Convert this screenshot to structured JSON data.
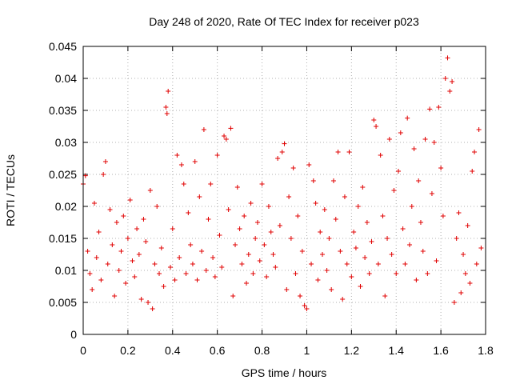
{
  "chart_data": {
    "type": "scatter",
    "title": "Day 248 of 2020, Rate Of TEC Index for receiver p023",
    "xlabel": "GPS time / hours",
    "ylabel": "ROTI / TECUs",
    "xlim": [
      0,
      1.8
    ],
    "ylim": [
      0,
      0.045
    ],
    "x_ticks": [
      0,
      0.2,
      0.4,
      0.6,
      0.8,
      1,
      1.2,
      1.4,
      1.6,
      1.8
    ],
    "x_tick_labels": [
      "0",
      "0.2",
      "0.4",
      "0.6",
      "0.8",
      "1",
      "1.2",
      "1.4",
      "1.6",
      "1.8"
    ],
    "y_ticks": [
      0,
      0.005,
      0.01,
      0.015,
      0.02,
      0.025,
      0.03,
      0.035,
      0.04,
      0.045
    ],
    "y_tick_labels": [
      "0",
      "0.005",
      "0.01",
      "0.015",
      "0.02",
      "0.025",
      "0.03",
      "0.035",
      "0.04",
      "0.045"
    ],
    "grid": true,
    "marker": "+",
    "color": "#e00000",
    "series": [
      {
        "name": "ROTI",
        "points": [
          [
            0.0,
            0.0235
          ],
          [
            0.01,
            0.0248
          ],
          [
            0.02,
            0.013
          ],
          [
            0.03,
            0.0095
          ],
          [
            0.04,
            0.007
          ],
          [
            0.05,
            0.0205
          ],
          [
            0.06,
            0.012
          ],
          [
            0.07,
            0.016
          ],
          [
            0.08,
            0.0085
          ],
          [
            0.09,
            0.025
          ],
          [
            0.1,
            0.027
          ],
          [
            0.11,
            0.011
          ],
          [
            0.12,
            0.0195
          ],
          [
            0.13,
            0.014
          ],
          [
            0.14,
            0.006
          ],
          [
            0.15,
            0.0175
          ],
          [
            0.16,
            0.01
          ],
          [
            0.17,
            0.013
          ],
          [
            0.18,
            0.0185
          ],
          [
            0.19,
            0.008
          ],
          [
            0.2,
            0.015
          ],
          [
            0.21,
            0.021
          ],
          [
            0.22,
            0.0115
          ],
          [
            0.23,
            0.009
          ],
          [
            0.24,
            0.0165
          ],
          [
            0.25,
            0.0125
          ],
          [
            0.26,
            0.0055
          ],
          [
            0.27,
            0.018
          ],
          [
            0.28,
            0.0145
          ],
          [
            0.29,
            0.005
          ],
          [
            0.3,
            0.0225
          ],
          [
            0.31,
            0.004
          ],
          [
            0.32,
            0.011
          ],
          [
            0.33,
            0.02
          ],
          [
            0.34,
            0.0095
          ],
          [
            0.35,
            0.0135
          ],
          [
            0.36,
            0.0075
          ],
          [
            0.37,
            0.0355
          ],
          [
            0.375,
            0.0345
          ],
          [
            0.38,
            0.038
          ],
          [
            0.39,
            0.0105
          ],
          [
            0.4,
            0.0165
          ],
          [
            0.41,
            0.0085
          ],
          [
            0.42,
            0.028
          ],
          [
            0.43,
            0.012
          ],
          [
            0.44,
            0.0265
          ],
          [
            0.45,
            0.0235
          ],
          [
            0.46,
            0.0095
          ],
          [
            0.47,
            0.019
          ],
          [
            0.48,
            0.014
          ],
          [
            0.49,
            0.011
          ],
          [
            0.5,
            0.027
          ],
          [
            0.51,
            0.0085
          ],
          [
            0.52,
            0.0215
          ],
          [
            0.53,
            0.013
          ],
          [
            0.54,
            0.032
          ],
          [
            0.55,
            0.01
          ],
          [
            0.56,
            0.018
          ],
          [
            0.57,
            0.0235
          ],
          [
            0.58,
            0.012
          ],
          [
            0.59,
            0.009
          ],
          [
            0.6,
            0.028
          ],
          [
            0.61,
            0.0155
          ],
          [
            0.62,
            0.0105
          ],
          [
            0.63,
            0.031
          ],
          [
            0.64,
            0.0305
          ],
          [
            0.65,
            0.0195
          ],
          [
            0.66,
            0.0322
          ],
          [
            0.67,
            0.006
          ],
          [
            0.68,
            0.014
          ],
          [
            0.69,
            0.023
          ],
          [
            0.7,
            0.0165
          ],
          [
            0.71,
            0.011
          ],
          [
            0.72,
            0.0185
          ],
          [
            0.73,
            0.008
          ],
          [
            0.74,
            0.0125
          ],
          [
            0.75,
            0.0205
          ],
          [
            0.76,
            0.0095
          ],
          [
            0.77,
            0.015
          ],
          [
            0.78,
            0.0175
          ],
          [
            0.79,
            0.0115
          ],
          [
            0.8,
            0.0235
          ],
          [
            0.81,
            0.014
          ],
          [
            0.82,
            0.009
          ],
          [
            0.83,
            0.02
          ],
          [
            0.84,
            0.016
          ],
          [
            0.85,
            0.0125
          ],
          [
            0.86,
            0.0105
          ],
          [
            0.87,
            0.0275
          ],
          [
            0.88,
            0.017
          ],
          [
            0.89,
            0.0285
          ],
          [
            0.9,
            0.0298
          ],
          [
            0.91,
            0.007
          ],
          [
            0.92,
            0.0215
          ],
          [
            0.93,
            0.015
          ],
          [
            0.94,
            0.026
          ],
          [
            0.95,
            0.0095
          ],
          [
            0.96,
            0.0185
          ],
          [
            0.97,
            0.006
          ],
          [
            0.98,
            0.013
          ],
          [
            0.99,
            0.0045
          ],
          [
            1.0,
            0.004
          ],
          [
            1.01,
            0.0265
          ],
          [
            1.02,
            0.011
          ],
          [
            1.03,
            0.024
          ],
          [
            1.04,
            0.0205
          ],
          [
            1.05,
            0.0085
          ],
          [
            1.06,
            0.016
          ],
          [
            1.07,
            0.0125
          ],
          [
            1.08,
            0.0195
          ],
          [
            1.09,
            0.01
          ],
          [
            1.1,
            0.015
          ],
          [
            1.11,
            0.007
          ],
          [
            1.12,
            0.024
          ],
          [
            1.13,
            0.018
          ],
          [
            1.14,
            0.0285
          ],
          [
            1.15,
            0.013
          ],
          [
            1.16,
            0.0055
          ],
          [
            1.17,
            0.0215
          ],
          [
            1.18,
            0.011
          ],
          [
            1.19,
            0.0285
          ],
          [
            1.2,
            0.009
          ],
          [
            1.21,
            0.016
          ],
          [
            1.22,
            0.0135
          ],
          [
            1.23,
            0.02
          ],
          [
            1.24,
            0.0075
          ],
          [
            1.25,
            0.023
          ],
          [
            1.26,
            0.012
          ],
          [
            1.27,
            0.0175
          ],
          [
            1.28,
            0.0095
          ],
          [
            1.29,
            0.0145
          ],
          [
            1.3,
            0.0335
          ],
          [
            1.31,
            0.0325
          ],
          [
            1.32,
            0.011
          ],
          [
            1.33,
            0.028
          ],
          [
            1.34,
            0.0185
          ],
          [
            1.35,
            0.006
          ],
          [
            1.36,
            0.015
          ],
          [
            1.37,
            0.0305
          ],
          [
            1.38,
            0.0125
          ],
          [
            1.39,
            0.0225
          ],
          [
            1.4,
            0.0095
          ],
          [
            1.41,
            0.0255
          ],
          [
            1.42,
            0.0315
          ],
          [
            1.43,
            0.0165
          ],
          [
            1.44,
            0.011
          ],
          [
            1.45,
            0.0338
          ],
          [
            1.46,
            0.014
          ],
          [
            1.47,
            0.02
          ],
          [
            1.48,
            0.029
          ],
          [
            1.49,
            0.0085
          ],
          [
            1.5,
            0.024
          ],
          [
            1.51,
            0.0175
          ],
          [
            1.52,
            0.013
          ],
          [
            1.53,
            0.0305
          ],
          [
            1.54,
            0.0095
          ],
          [
            1.55,
            0.0352
          ],
          [
            1.56,
            0.022
          ],
          [
            1.57,
            0.03
          ],
          [
            1.58,
            0.0115
          ],
          [
            1.59,
            0.0355
          ],
          [
            1.6,
            0.026
          ],
          [
            1.61,
            0.0185
          ],
          [
            1.62,
            0.04
          ],
          [
            1.63,
            0.0432
          ],
          [
            1.64,
            0.038
          ],
          [
            1.65,
            0.0395
          ],
          [
            1.66,
            0.005
          ],
          [
            1.67,
            0.015
          ],
          [
            1.68,
            0.019
          ],
          [
            1.69,
            0.0065
          ],
          [
            1.7,
            0.0125
          ],
          [
            1.71,
            0.0095
          ],
          [
            1.72,
            0.017
          ],
          [
            1.73,
            0.008
          ],
          [
            1.74,
            0.0255
          ],
          [
            1.75,
            0.0285
          ],
          [
            1.76,
            0.011
          ],
          [
            1.77,
            0.032
          ],
          [
            1.78,
            0.0135
          ]
        ]
      }
    ]
  }
}
